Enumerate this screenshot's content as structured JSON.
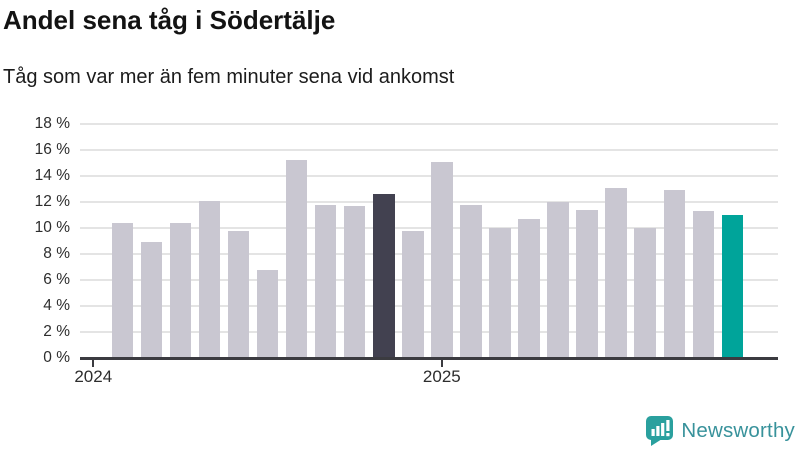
{
  "header": {
    "title": "Andel sena tåg i Södertälje",
    "subtitle": "Tåg som var mer än fem minuter sena vid ankomst"
  },
  "chart_data": {
    "type": "bar",
    "title": "Andel sena tåg i Södertälje",
    "subtitle": "Tåg som var mer än fem minuter sena vid ankomst",
    "unit": "%",
    "x": [
      "2024-02",
      "2024-03",
      "2024-04",
      "2024-05",
      "2024-06",
      "2024-07",
      "2024-08",
      "2024-09",
      "2024-10",
      "2024-11",
      "2024-12",
      "2025-01",
      "2025-02",
      "2025-03",
      "2025-04",
      "2025-05",
      "2025-06",
      "2025-07",
      "2025-08",
      "2025-09",
      "2025-10",
      "2025-11"
    ],
    "values": [
      10.4,
      8.9,
      10.4,
      12.1,
      9.8,
      6.8,
      15.2,
      11.8,
      11.7,
      12.6,
      9.8,
      15.1,
      11.8,
      10.0,
      10.7,
      12.0,
      11.4,
      13.1,
      10.0,
      12.9,
      11.3,
      11.0
    ],
    "ylim": [
      0,
      18
    ],
    "yticks": [
      {
        "value": 0,
        "label": "0 %"
      },
      {
        "value": 2,
        "label": "2 %"
      },
      {
        "value": 4,
        "label": "4 %"
      },
      {
        "value": 6,
        "label": "6 %"
      },
      {
        "value": 8,
        "label": "8 %"
      },
      {
        "value": 10,
        "label": "10 %"
      },
      {
        "value": 12,
        "label": "12 %"
      },
      {
        "value": 14,
        "label": "14 %"
      },
      {
        "value": 16,
        "label": "16 %"
      },
      {
        "value": 18,
        "label": "18 %"
      }
    ],
    "xticks": [
      {
        "month": "2024-01",
        "label": "2024"
      },
      {
        "month": "2025-01",
        "label": "2025"
      }
    ],
    "highlights": {
      "2024-11": "dark",
      "2025-11": "teal"
    },
    "colors": {
      "default": "#c9c7d1",
      "dark": "#424150",
      "teal": "#00a49a"
    },
    "grid": "horizontal",
    "legend": false
  },
  "footer": {
    "brand": "Newsworthy",
    "brand_color": "#38929b",
    "logo_icon_color": "#2aa09e",
    "logo_icon": "speech-bubble-bar-chart-exclamation"
  }
}
